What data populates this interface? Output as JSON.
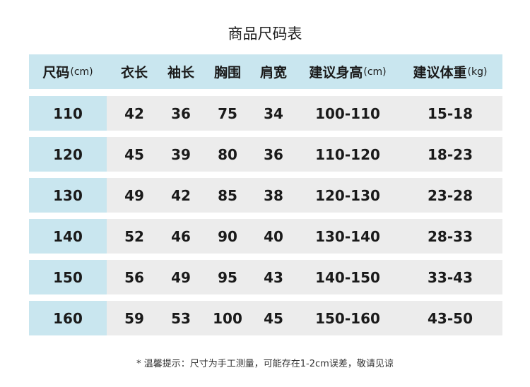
{
  "title": "商品尺码表",
  "headers": [
    {
      "label": "尺码",
      "unit": "(cm)"
    },
    {
      "label": "衣长",
      "unit": ""
    },
    {
      "label": "袖长",
      "unit": ""
    },
    {
      "label": "胸围",
      "unit": ""
    },
    {
      "label": "肩宽",
      "unit": ""
    },
    {
      "label": "建议身高",
      "unit": "(cm)"
    },
    {
      "label": "建议体重",
      "unit": "(kg)"
    }
  ],
  "rows": [
    [
      "110",
      "42",
      "36",
      "75",
      "34",
      "100-110",
      "15-18"
    ],
    [
      "120",
      "45",
      "39",
      "80",
      "36",
      "110-120",
      "18-23"
    ],
    [
      "130",
      "49",
      "42",
      "85",
      "38",
      "120-130",
      "23-28"
    ],
    [
      "140",
      "52",
      "46",
      "90",
      "40",
      "130-140",
      "28-33"
    ],
    [
      "150",
      "56",
      "49",
      "95",
      "43",
      "140-150",
      "33-43"
    ],
    [
      "160",
      "59",
      "53",
      "100",
      "45",
      "150-160",
      "43-50"
    ]
  ],
  "note": "* 温馨提示：尺寸为手工测量，可能存在1-2cm误差，敬请见谅",
  "colors": {
    "header_bg": "#c9e6ef",
    "row_bg": "#ececec"
  }
}
